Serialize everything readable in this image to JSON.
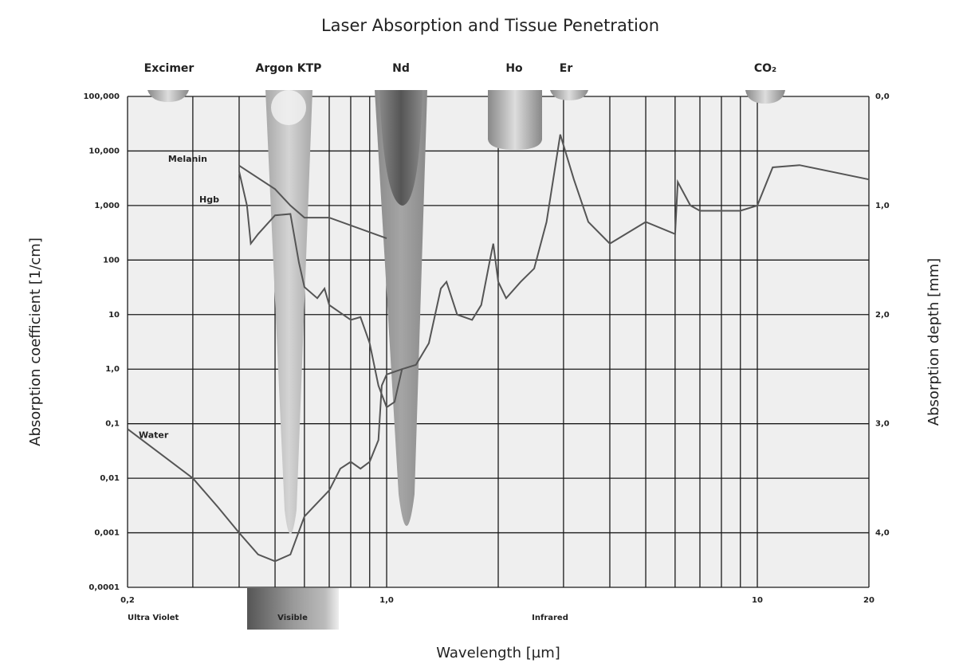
{
  "chart_data": {
    "type": "line",
    "title": "Laser Absorption and Tissue Penetration",
    "x_label": "Wavelength [µm]",
    "y_label": "Absorption coefficient [1/cm]",
    "y2_label": "Absorption depth [mm]",
    "log_x": true,
    "log_y": true,
    "grid": true,
    "xlim": [
      0.2,
      20
    ],
    "ylim": [
      0.0001,
      100000
    ],
    "y2lim": [
      4.5,
      0
    ],
    "xticks": [
      {
        "value": 0.2,
        "label": "0,2"
      },
      {
        "value": 1,
        "label": "1,0"
      },
      10,
      20
    ],
    "xminor_ticks": [
      0.3,
      0.4,
      0.5,
      0.6,
      0.7,
      0.8,
      0.9,
      2,
      3,
      4,
      5,
      6,
      7,
      8,
      9
    ],
    "yticks": [
      {
        "value": 0.0001,
        "label": "0,0001"
      },
      {
        "value": 0.001,
        "label": "0,001"
      },
      {
        "value": 0.01,
        "label": "0,01"
      },
      {
        "value": 0.1,
        "label": "0,1"
      },
      {
        "value": 1,
        "label": "1,0"
      },
      10,
      100,
      {
        "value": 1000,
        "label": "1,000"
      },
      {
        "value": 10000,
        "label": "10,000"
      },
      {
        "value": 100000,
        "label": "100,000"
      }
    ],
    "y2ticks": [
      {
        "value": 0,
        "label": "0,0"
      },
      {
        "value": 1,
        "label": "1,0"
      },
      {
        "value": 2,
        "label": "2,0"
      },
      {
        "value": 3,
        "label": "3,0"
      },
      {
        "value": 4,
        "label": "4,0"
      }
    ],
    "lasers": [
      "Excimer",
      "Argon KTP",
      "Nd",
      "Ho",
      "Er",
      "CO₂"
    ],
    "regions": [
      "Ultra Violet",
      "Visible",
      "Infrared"
    ],
    "series": [
      {
        "name": "Water",
        "color": "#555555",
        "x": [
          0.2,
          0.3,
          0.35,
          0.4,
          0.45,
          0.5,
          0.55,
          0.6,
          0.7,
          0.75,
          0.8,
          0.85,
          0.9,
          0.95,
          0.97,
          1.0,
          1.1,
          1.2,
          1.3,
          1.4,
          1.45,
          1.55,
          1.7,
          1.8,
          1.9,
          1.94,
          2.0,
          2.1,
          2.3,
          2.5,
          2.7,
          2.94,
          3.2,
          3.5,
          4,
          5,
          6,
          6.1,
          6.6,
          7,
          9,
          10,
          11,
          13,
          20
        ],
        "values": [
          0.08,
          0.01,
          0.003,
          0.001,
          0.0004,
          0.0003,
          0.0004,
          0.002,
          0.006,
          0.015,
          0.02,
          0.015,
          0.02,
          0.05,
          0.5,
          0.8,
          1,
          1.2,
          3,
          30,
          40,
          10,
          8,
          15,
          100,
          200,
          40,
          20,
          40,
          70,
          500,
          20000,
          3000,
          500,
          200,
          500,
          300,
          2700,
          1000,
          800,
          800,
          1000,
          5000,
          5500,
          3000
        ]
      },
      {
        "name": "Melanin",
        "color": "#555555",
        "x": [
          0.4,
          0.5,
          0.55,
          0.6,
          0.7,
          1.0
        ],
        "values": [
          5400,
          2000,
          1000,
          600,
          600,
          250
        ]
      },
      {
        "name": "Hgb",
        "color": "#555555",
        "x": [
          0.4,
          0.42,
          0.43,
          0.45,
          0.5,
          0.55,
          0.58,
          0.6,
          0.65,
          0.68,
          0.7,
          0.8,
          0.85,
          0.9,
          0.95,
          1.0,
          1.05,
          1.1
        ],
        "values": [
          4200,
          1000,
          200,
          300,
          660,
          700,
          90,
          32,
          20,
          30,
          15,
          8,
          9,
          3,
          0.5,
          0.2,
          0.25,
          1
        ]
      }
    ]
  }
}
